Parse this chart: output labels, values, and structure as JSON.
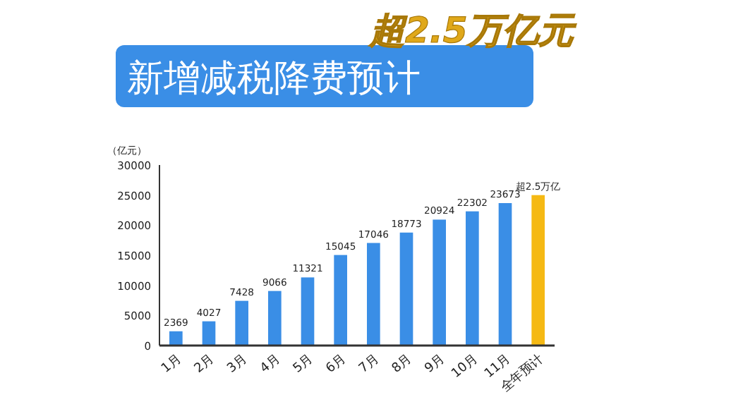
{
  "chart_data": {
    "type": "bar",
    "title": "新增减税降费预计",
    "subtitle": "超2.5万亿元",
    "ylabel": "（亿元）",
    "categories": [
      "1月",
      "2月",
      "3月",
      "4月",
      "5月",
      "6月",
      "7月",
      "8月",
      "9月",
      "10月",
      "11月",
      "全年预计"
    ],
    "values": [
      2369,
      4027,
      7428,
      9066,
      11321,
      15045,
      17046,
      18773,
      20924,
      22302,
      23673,
      25000
    ],
    "colors": [
      "#3a8ee6",
      "#3a8ee6",
      "#3a8ee6",
      "#3a8ee6",
      "#3a8ee6",
      "#3a8ee6",
      "#3a8ee6",
      "#3a8ee6",
      "#3a8ee6",
      "#3a8ee6",
      "#3a8ee6",
      "#f5b914"
    ],
    "value_labels": [
      "2369",
      "4027",
      "7428",
      "9066",
      "11321",
      "15045",
      "17046",
      "18773",
      "20924",
      "22302",
      "23673",
      "超2.5万亿"
    ],
    "ylim": [
      0,
      30000
    ],
    "yticks": [
      0,
      5000,
      10000,
      15000,
      20000,
      25000,
      30000
    ],
    "grid": false
  }
}
